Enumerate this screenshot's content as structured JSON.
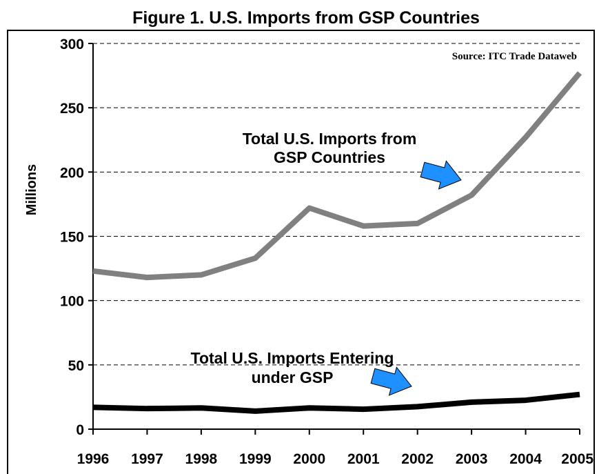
{
  "chart_data": {
    "type": "line",
    "title": "Figure 1.  U.S. Imports from GSP Countries",
    "source": "Source: ITC Trade Dataweb",
    "ylabel": "Millions",
    "xlabel": "",
    "ylim": [
      0,
      300
    ],
    "yticks": [
      0,
      50,
      100,
      150,
      200,
      250,
      300
    ],
    "grid": true,
    "x": [
      "1996",
      "1997",
      "1998",
      "1999",
      "2000",
      "2001",
      "2002",
      "2003",
      "2004",
      "2005"
    ],
    "series": [
      {
        "name": "Total U.S. Imports from GSP Countries",
        "label_lines": [
          "Total U.S. Imports from",
          "GSP Countries"
        ],
        "color": "#808080",
        "values": [
          123,
          118,
          120,
          133,
          172,
          158,
          160,
          182,
          227,
          277
        ]
      },
      {
        "name": "Total U.S. Imports Entering under GSP",
        "label_lines": [
          "Total U.S. Imports Entering",
          "under GSP"
        ],
        "color": "#000000",
        "values": [
          17,
          16,
          16.5,
          14,
          16.5,
          15.5,
          17.5,
          21,
          22.5,
          27
        ]
      }
    ],
    "annotation_arrow_color": "#1e90ff"
  }
}
